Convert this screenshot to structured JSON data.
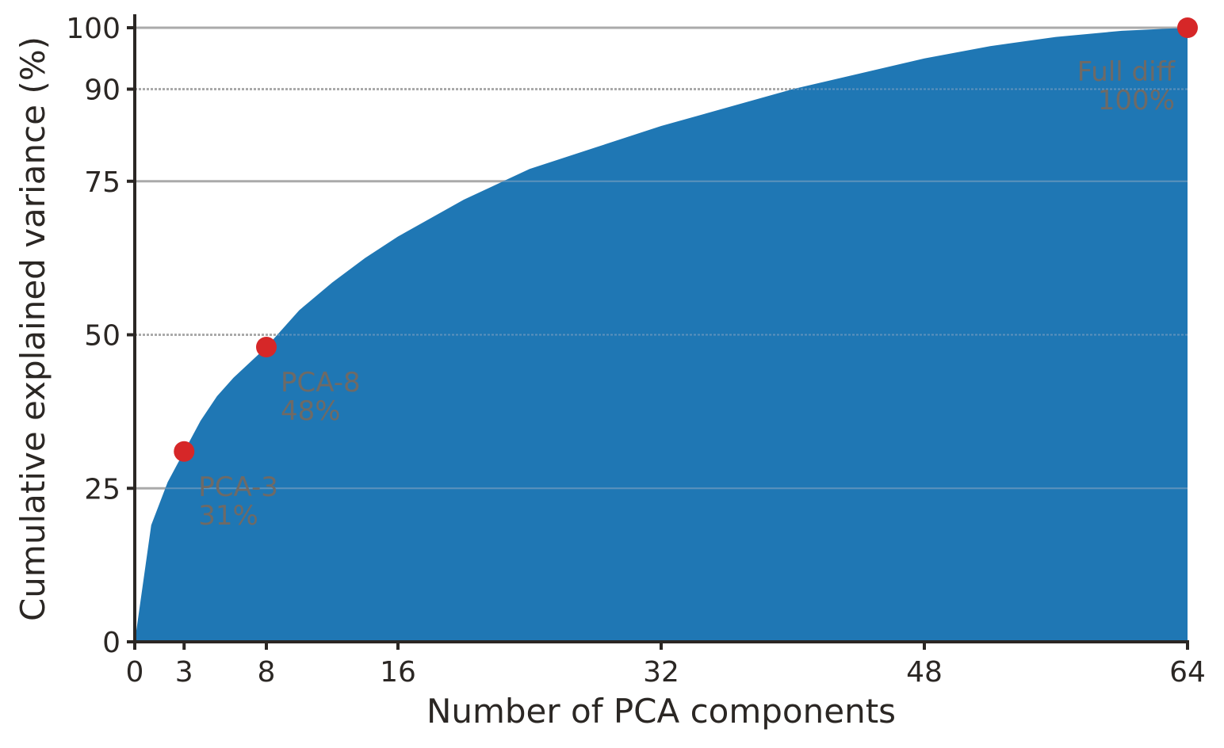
{
  "chart_data": {
    "type": "area",
    "title": "",
    "xlabel": "Number of PCA components",
    "ylabel": "Cumulative explained variance (%)",
    "xlim": [
      0,
      64
    ],
    "ylim": [
      0,
      100
    ],
    "x_ticks": [
      0,
      3,
      8,
      16,
      32,
      48,
      64
    ],
    "y_ticks": [
      0,
      25,
      50,
      75,
      90,
      100
    ],
    "grid": {
      "y": true,
      "x": false,
      "dashed_lines": [
        50,
        90
      ]
    },
    "fill_color": "#1f77b4",
    "marker_color": "#d62728",
    "series": [
      {
        "name": "Cumulative explained variance",
        "x": [
          0,
          1,
          2,
          3,
          4,
          5,
          6,
          7,
          8,
          10,
          12,
          14,
          16,
          20,
          24,
          28,
          32,
          36,
          40,
          44,
          48,
          52,
          56,
          60,
          64
        ],
        "values": [
          0,
          19,
          26,
          31,
          36,
          40,
          43,
          45.5,
          48,
          54,
          58.5,
          62.5,
          66,
          72,
          77,
          80.5,
          84,
          87,
          90,
          92.5,
          95,
          97,
          98.5,
          99.5,
          100
        ]
      }
    ],
    "annotations": [
      {
        "x": 3,
        "y": 31,
        "label": "PCA-3",
        "value_label": "31%"
      },
      {
        "x": 8,
        "y": 48,
        "label": "PCA-8",
        "value_label": "48%"
      },
      {
        "x": 64,
        "y": 100,
        "label": "Full diff",
        "value_label": "100%"
      }
    ]
  }
}
